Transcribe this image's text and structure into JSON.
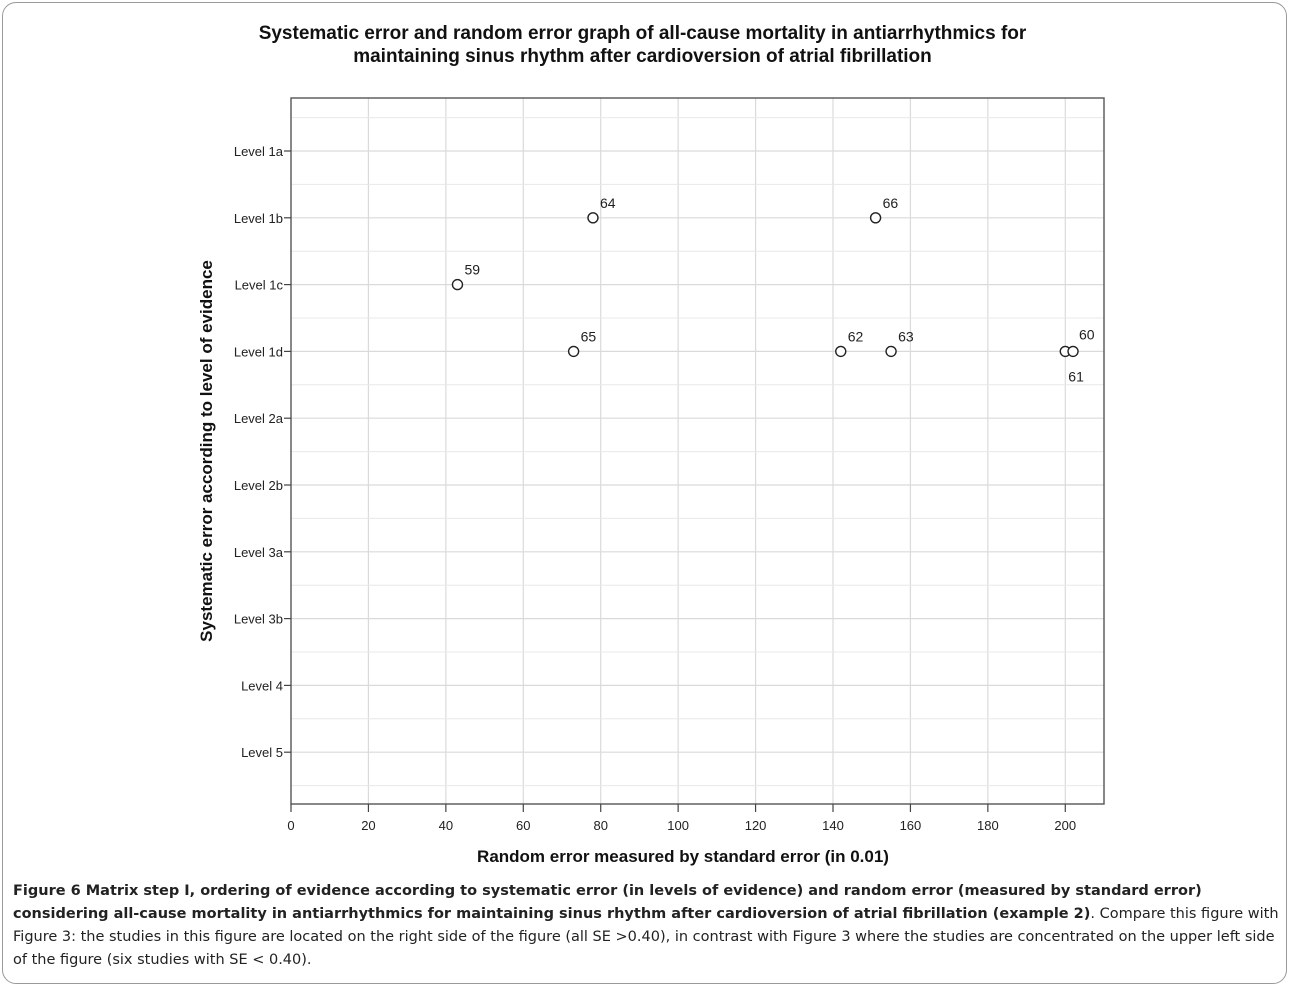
{
  "chart_data": {
    "type": "scatter",
    "title_lines": [
      "Systematic error and random error graph of all-cause mortality in antiarrhythmics for",
      "maintaining sinus rhythm after cardioversion of atrial fibrillation"
    ],
    "xlabel": "Random error measured by standard error (in 0.01)",
    "ylabel": "Systematic error according to level of evidence",
    "xlim": [
      0,
      210
    ],
    "x_ticks": [
      0,
      20,
      40,
      60,
      80,
      100,
      120,
      140,
      160,
      180,
      200
    ],
    "y_categories": [
      "Level 1a",
      "Level 1b",
      "Level 1c",
      "Level 1d",
      "Level 2a",
      "Level 2b",
      "Level 3a",
      "Level 3b",
      "Level 4",
      "Level 5"
    ],
    "grid": true,
    "points": [
      {
        "label": "64",
        "x": 78,
        "y": "Level 1b"
      },
      {
        "label": "66",
        "x": 151,
        "y": "Level 1b"
      },
      {
        "label": "59",
        "x": 43,
        "y": "Level 1c"
      },
      {
        "label": "65",
        "x": 73,
        "y": "Level 1d"
      },
      {
        "label": "62",
        "x": 142,
        "y": "Level 1d"
      },
      {
        "label": "63",
        "x": 155,
        "y": "Level 1d"
      },
      {
        "label": "61",
        "x": 200,
        "y": "Level 1d"
      },
      {
        "label": "60",
        "x": 202,
        "y": "Level 1d"
      }
    ]
  },
  "caption": {
    "figure_label": "Figure 6",
    "bold_text": " Matrix step I, ordering of evidence according to systematic error (in levels of evidence) and random error (measured by standard error) considering all-cause mortality in antiarrhythmics for maintaining sinus rhythm after cardioversion of atrial fibrillation (example 2)",
    "body_text": ". Compare this figure with Figure 3: the studies in this figure are located on the right side of the figure (all SE >0.40), in contrast with Figure 3 where the studies are concentrated on the upper left side of the figure (six studies with SE < 0.40)."
  }
}
